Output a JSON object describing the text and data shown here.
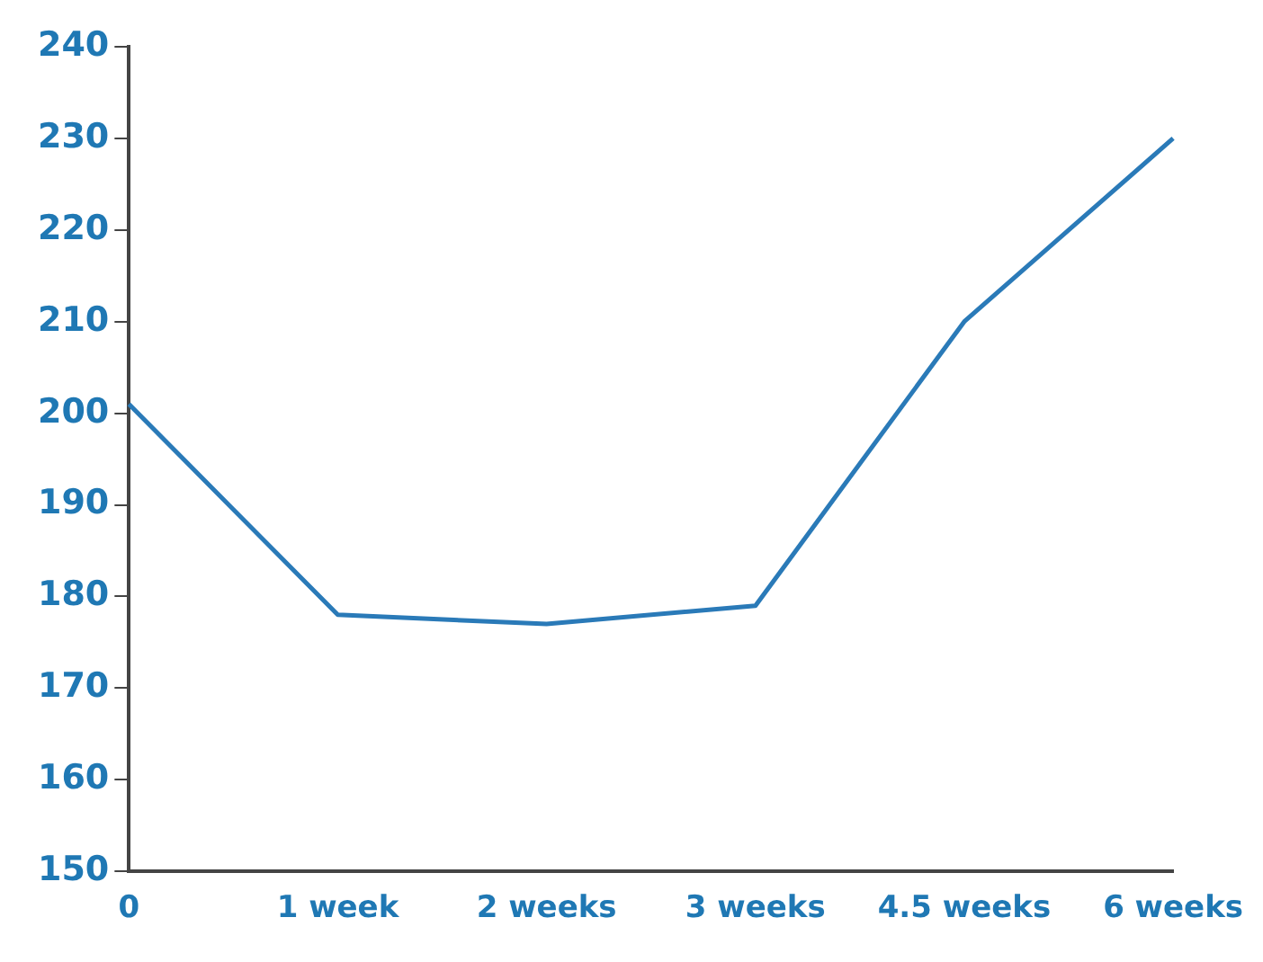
{
  "chart_data": {
    "type": "line",
    "categories": [
      "0",
      "1 week",
      "2 weeks",
      "3 weeks",
      "4.5 weeks",
      "6 weeks"
    ],
    "series": [
      {
        "color": "#2a7ab8",
        "values": [
          201,
          178,
          177,
          179,
          210,
          230
        ]
      }
    ],
    "ylim": [
      150,
      240
    ],
    "yticks": [
      150,
      160,
      170,
      180,
      190,
      200,
      210,
      220,
      230,
      240
    ],
    "grid": false,
    "legend": false,
    "marker": "none",
    "line_style": "solid"
  }
}
